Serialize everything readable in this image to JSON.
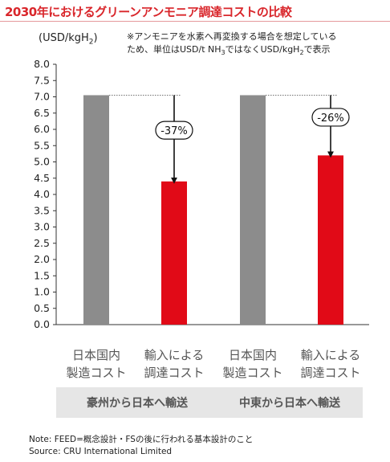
{
  "title": "2030年におけるグリーンアンモニア調達コストの比較",
  "unit": {
    "text": "(USD/kgH",
    "sub": "2",
    "close": ")"
  },
  "note": {
    "line1": "※アンモニアを水素へ再変換する場合を想定している",
    "line2_a": "ため、単位はUSD/t NH",
    "line2_sub": "3",
    "line2_b": "ではなくUSD/kgH",
    "line2_sub2": "2",
    "line2_c": "で表示"
  },
  "chart_data": {
    "type": "bar",
    "ylim": [
      0,
      8
    ],
    "ytick_step": 0.5,
    "yticks": [
      "0.0",
      "0.5",
      "1.0",
      "1.5",
      "2.0",
      "2.5",
      "3.0",
      "3.5",
      "4.0",
      "4.5",
      "5.0",
      "5.5",
      "6.0",
      "6.5",
      "7.0",
      "7.5",
      "8.0"
    ],
    "bars": [
      {
        "label_line1": "日本国内",
        "label_line2": "製造コスト",
        "value": 7.05,
        "color": "#8c8c8c"
      },
      {
        "label_line1": "輸入による",
        "label_line2": "調達コスト",
        "value": 4.4,
        "color": "#e10a17"
      },
      {
        "label_line1": "日本国内",
        "label_line2": "製造コスト",
        "value": 7.05,
        "color": "#8c8c8c"
      },
      {
        "label_line1": "輸入による",
        "label_line2": "調達コスト",
        "value": 5.2,
        "color": "#e10a17"
      }
    ],
    "groups": [
      "豪州から日本へ輸送",
      "中東から日本へ輸送"
    ],
    "annotations": [
      "-37%",
      "-26%"
    ]
  },
  "footnotes": {
    "note": "Note: FEED=概念設計・FSの後に行われる基本設計のこと",
    "source": "Source: CRU International Limited"
  }
}
